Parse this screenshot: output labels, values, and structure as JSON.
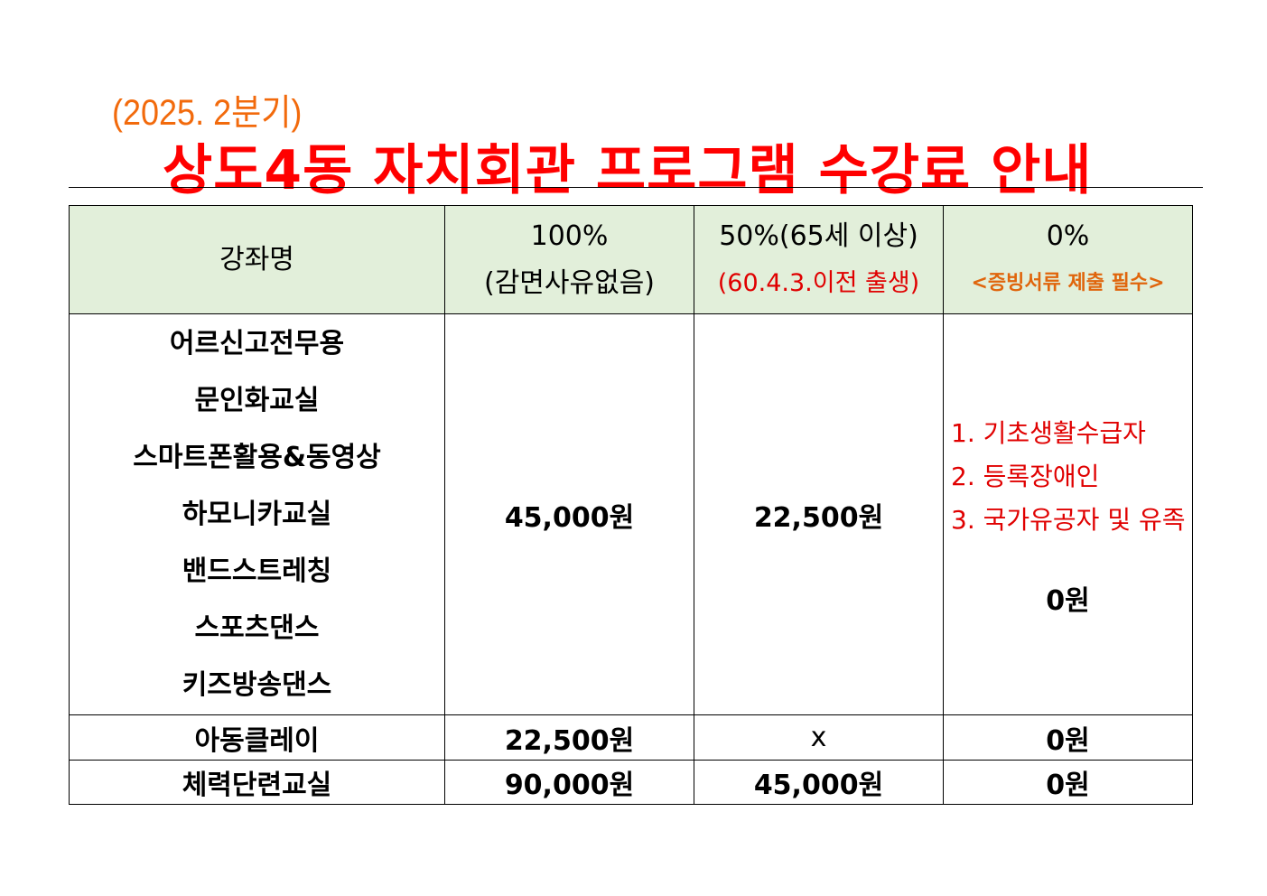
{
  "header": {
    "period": "(2025. 2분기)",
    "title": "상도4동 자치회관 프로그램 수강료 안내"
  },
  "table": {
    "columns": [
      {
        "line1": "강좌명"
      },
      {
        "line1": "100%",
        "line2": "(감면사유없음)"
      },
      {
        "line1": "50%(65세 이상)",
        "line2": "(60.4.3.이전 출생)"
      },
      {
        "line1": "0%",
        "line2": "<증빙서류 제출 필수>"
      }
    ],
    "group": {
      "courses": [
        "어르신고전무용",
        "문인화교실",
        "스마트폰활용&동영상",
        "하모니카교실",
        "밴드스트레칭",
        "스포츠댄스",
        "키즈방송댄스"
      ],
      "full": "45,000원",
      "half": "22,500원",
      "exempt_list": [
        "1.  기초생활수급자",
        "2.  등록장애인",
        "3.  국가유공자 및 유족"
      ],
      "exempt": "0원"
    },
    "rows": [
      {
        "name": "아동클레이",
        "full": "22,500원",
        "half": "x",
        "exempt": "0원"
      },
      {
        "name": "체력단련교실",
        "full": "90,000원",
        "half": "45,000원",
        "exempt": "0원"
      }
    ]
  },
  "colors": {
    "period": "#f26a0c",
    "title": "#ff0000",
    "header_bg": "#e2efda",
    "note": "#e00000"
  }
}
